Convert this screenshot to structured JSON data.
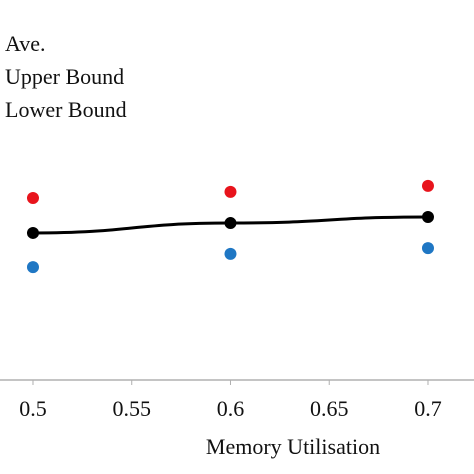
{
  "chart_data": {
    "type": "line",
    "x_label": "Memory Utilisation",
    "x": [
      0.5,
      0.6,
      0.7
    ],
    "series": [
      {
        "name": "Ave.",
        "color": "#000000",
        "values": [
          0.387,
          0.413,
          0.429
        ],
        "line": true
      },
      {
        "name": "Upper Bound",
        "color": "#e8141c",
        "values": [
          0.479,
          0.495,
          0.511
        ],
        "line": false
      },
      {
        "name": "Lower Bound",
        "color": "#1f77c4",
        "values": [
          0.297,
          0.332,
          0.347
        ],
        "line": false
      }
    ],
    "xlim": [
      0.4833,
      0.7233
    ],
    "xticks": [
      0.5,
      0.55,
      0.6,
      0.65,
      0.7
    ],
    "ylim": [
      0,
      1
    ]
  }
}
